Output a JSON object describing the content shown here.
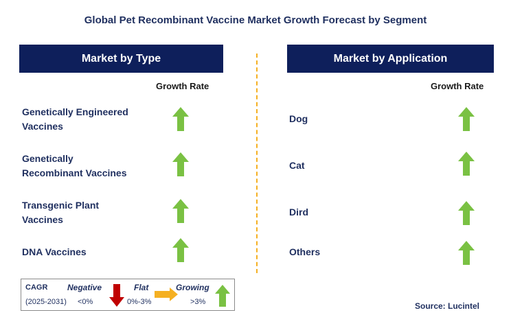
{
  "title": "Global Pet Recombinant Vaccine Market Growth Forecast by Segment",
  "left_panel": {
    "header": "Market by Type",
    "growth_rate_label": "Growth Rate",
    "items": [
      {
        "line1": "Genetically Engineered",
        "line2": "Vaccines",
        "trend": "growing"
      },
      {
        "line1": "Genetically",
        "line2": "Recombinant Vaccines",
        "trend": "growing"
      },
      {
        "line1": "Transgenic Plant",
        "line2": "Vaccines",
        "trend": "growing"
      },
      {
        "line1": "DNA Vaccines",
        "line2": "",
        "trend": "growing"
      }
    ]
  },
  "right_panel": {
    "header": "Market by Application",
    "growth_rate_label": "Growth Rate",
    "items": [
      {
        "label": "Dog",
        "trend": "growing"
      },
      {
        "label": "Cat",
        "trend": "growing"
      },
      {
        "label": "Dird",
        "trend": "growing"
      },
      {
        "label": "Others",
        "trend": "growing"
      }
    ]
  },
  "legend": {
    "cagr_label": "CAGR",
    "period": "(2025-2031)",
    "negative_label": "Negative",
    "negative_value": "<0%",
    "flat_label": "Flat",
    "flat_value": "0%-3%",
    "growing_label": "Growing",
    "growing_value": ">3%"
  },
  "source": "Source: Lucintel",
  "colors": {
    "header_bg": "#0e1f5b",
    "up_arrow": "#7ac143",
    "down_arrow": "#c00000",
    "flat_arrow": "#f5b022",
    "divider": "#f5b022"
  }
}
